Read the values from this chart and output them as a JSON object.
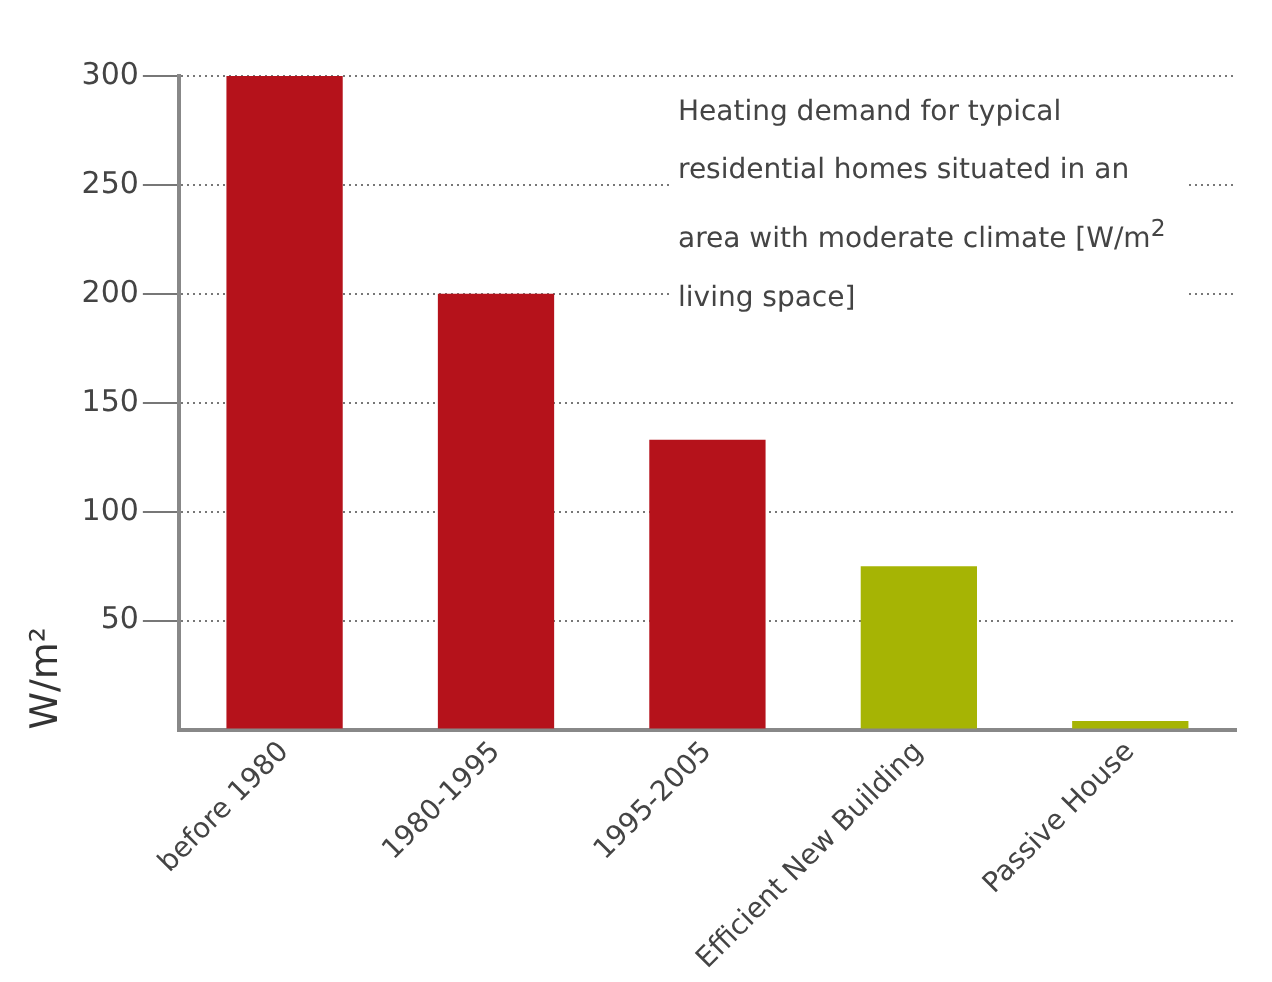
{
  "chart_data": {
    "type": "bar",
    "ylabel": "W/m²",
    "categories": [
      "before 1980",
      "1980-1995",
      "1995-2005",
      "Efficient New Building",
      "Passive House"
    ],
    "values": [
      300,
      200,
      133,
      75,
      4
    ],
    "colors": [
      "#b5121b",
      "#b5121b",
      "#b5121b",
      "#a6b404",
      "#a6b404"
    ],
    "ylim": [
      0,
      300
    ],
    "yticks": [
      {
        "value": 0,
        "label": null
      },
      50,
      100,
      150,
      200,
      250,
      300
    ],
    "grid": "y",
    "legend": false,
    "annotations": [
      "Heating demand for typical residential homes situated in an area with moderate climate [W/m$^{2}$ living space]"
    ]
  }
}
